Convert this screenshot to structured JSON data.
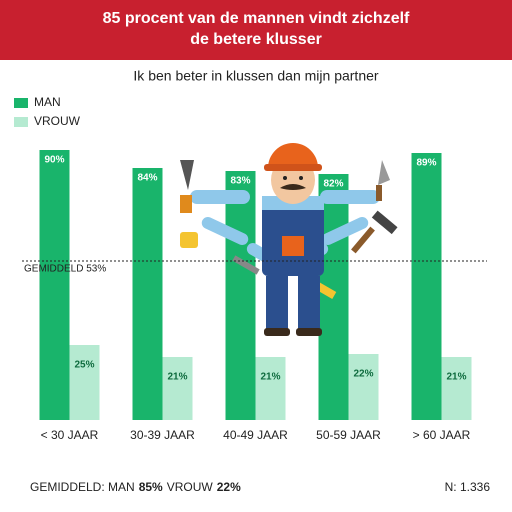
{
  "chart_data": {
    "type": "bar",
    "title": "85 procent van de mannen vindt zichzelf de betere klusser",
    "subtitle": "Ik ben beter in klussen dan mijn partner",
    "categories": [
      "< 30 JAAR",
      "30-39 JAAR",
      "40-49 JAAR",
      "50-59 JAAR",
      "> 60 JAAR"
    ],
    "series": [
      {
        "name": "MAN",
        "color": "#19b46b",
        "values": [
          90,
          84,
          83,
          82,
          89
        ],
        "value_labels": [
          "90%",
          "84%",
          "83%",
          "82%",
          "89%"
        ]
      },
      {
        "name": "VROUW",
        "color": "#b5ead1",
        "values": [
          25,
          21,
          21,
          22,
          21
        ],
        "value_labels": [
          "25%",
          "21%",
          "21%",
          "22%",
          "21%"
        ]
      }
    ],
    "ylim": [
      0,
      100
    ],
    "reference_line": {
      "value": 53,
      "label": "GEMIDDELD 53%"
    },
    "legend": "top-left",
    "footer": {
      "average_label": "GEMIDDELD: MAN",
      "man_average": "85%",
      "woman_label": "VROUW",
      "woman_average": "22%",
      "sample_size": "N: 1.336"
    }
  }
}
